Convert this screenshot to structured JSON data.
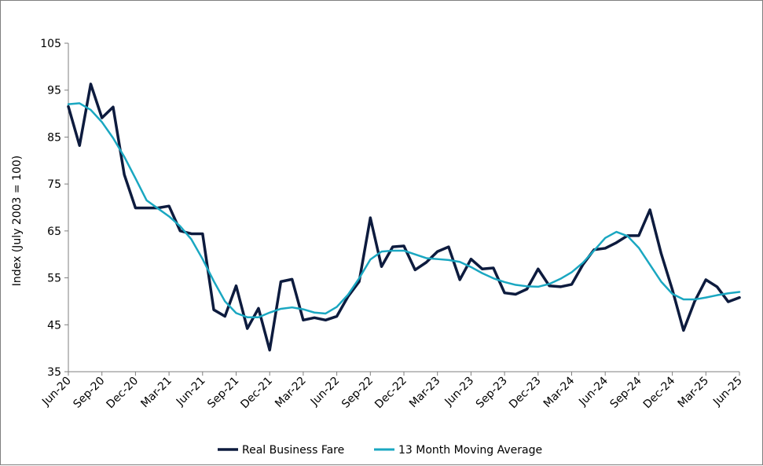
{
  "chart_data": {
    "type": "line",
    "title": "",
    "xlabel": "",
    "ylabel": "Index (July 2003 = 100)",
    "ylim": [
      35,
      105
    ],
    "yticks": [
      35,
      45,
      55,
      65,
      75,
      85,
      95,
      105
    ],
    "grid": false,
    "legend_position": "bottom",
    "tick_labels": [
      "Jun-20",
      "Sep-20",
      "Dec-20",
      "Mar-21",
      "Jun-21",
      "Sep-21",
      "Dec-21",
      "Mar-22",
      "Jun-22",
      "Sep-22",
      "Dec-22",
      "Mar-23",
      "Jun-23",
      "Sep-23",
      "Dec-23",
      "Mar-24",
      "Jun-24",
      "Sep-24",
      "Dec-24",
      "Mar-25",
      "Jun-25"
    ],
    "x": [
      "Jun-20",
      "Jul-20",
      "Aug-20",
      "Sep-20",
      "Oct-20",
      "Nov-20",
      "Dec-20",
      "Jan-21",
      "Feb-21",
      "Mar-21",
      "Apr-21",
      "May-21",
      "Jun-21",
      "Jul-21",
      "Aug-21",
      "Sep-21",
      "Oct-21",
      "Nov-21",
      "Dec-21",
      "Jan-22",
      "Feb-22",
      "Mar-22",
      "Apr-22",
      "May-22",
      "Jun-22",
      "Jul-22",
      "Aug-22",
      "Sep-22",
      "Oct-22",
      "Nov-22",
      "Dec-22",
      "Jan-23",
      "Feb-23",
      "Mar-23",
      "Apr-23",
      "May-23",
      "Jun-23",
      "Jul-23",
      "Aug-23",
      "Sep-23",
      "Oct-23",
      "Nov-23",
      "Dec-23",
      "Jan-24",
      "Feb-24",
      "Mar-24",
      "Apr-24",
      "May-24",
      "Jun-24",
      "Jul-24",
      "Aug-24",
      "Sep-24",
      "Oct-24",
      "Nov-24",
      "Dec-24",
      "Jan-25",
      "Feb-25",
      "Mar-25",
      "Apr-25",
      "May-25",
      "Jun-25"
    ],
    "series": [
      {
        "name": "Real Business Fare",
        "color": "#0d1b3e",
        "values": [
          91.5,
          83.2,
          96.3,
          89.1,
          91.4,
          77.0,
          69.9,
          69.9,
          69.9,
          70.3,
          65.0,
          64.4,
          64.4,
          48.2,
          46.8,
          53.3,
          44.2,
          48.5,
          39.6,
          54.2,
          54.7,
          46.0,
          46.5,
          46.0,
          46.8,
          51.0,
          54.2,
          67.8,
          57.4,
          61.6,
          61.8,
          56.7,
          58.3,
          60.6,
          61.6,
          54.6,
          59.0,
          56.9,
          57.1,
          51.8,
          51.5,
          52.6,
          56.9,
          53.3,
          53.1,
          53.6,
          57.8,
          61.0,
          61.3,
          62.5,
          64.0,
          64.0,
          69.5,
          60.2,
          52.5,
          43.8,
          50.0,
          54.6,
          53.1,
          49.9,
          50.8
        ]
      },
      {
        "name": "13 Month Moving Average",
        "color": "#1aa7c1",
        "values": [
          92.0,
          92.2,
          90.8,
          88.2,
          84.8,
          80.8,
          76.2,
          71.5,
          69.8,
          68.1,
          66.0,
          63.2,
          59.0,
          54.3,
          50.0,
          47.5,
          46.6,
          46.6,
          47.6,
          48.4,
          48.7,
          48.3,
          47.6,
          47.4,
          48.8,
          51.4,
          54.9,
          58.9,
          60.6,
          60.8,
          60.8,
          60.0,
          59.2,
          59.0,
          58.8,
          58.4,
          57.3,
          56.0,
          54.9,
          54.1,
          53.5,
          53.2,
          53.1,
          53.7,
          54.8,
          56.2,
          58.2,
          60.8,
          63.5,
          64.8,
          63.9,
          61.4,
          57.8,
          54.2,
          51.6,
          50.4,
          50.4,
          50.8,
          51.3,
          51.7,
          52.0
        ]
      }
    ]
  }
}
